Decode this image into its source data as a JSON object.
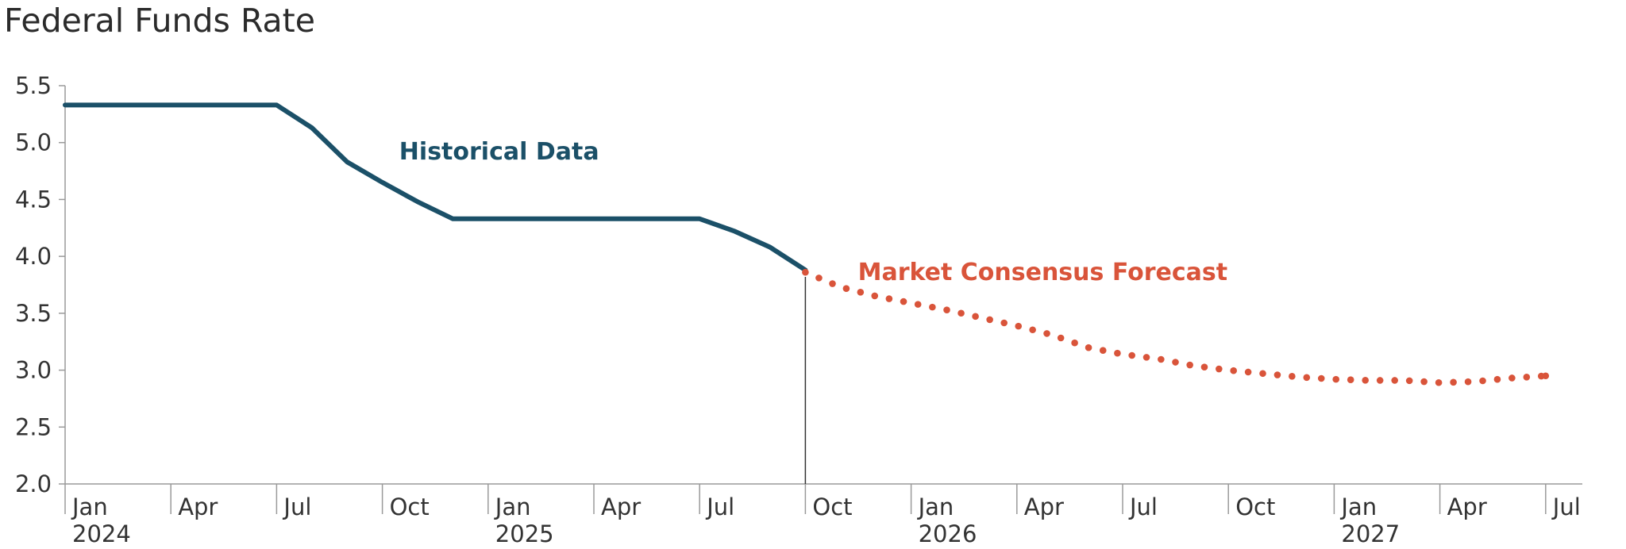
{
  "chart_data": {
    "type": "line",
    "title": "Federal Funds Rate",
    "xlabel": "",
    "ylabel": "",
    "ylim": [
      2.0,
      5.5
    ],
    "yticks": [
      2.0,
      2.5,
      3.0,
      3.5,
      4.0,
      4.5,
      5.0,
      5.5
    ],
    "ytick_labels": [
      "2.0",
      "2.5",
      "3.0",
      "3.5",
      "4.0",
      "4.5",
      "5.0",
      "5.5"
    ],
    "x_axis": {
      "start": "2024-01",
      "end": "2027-07",
      "ticks": [
        {
          "month": "2024-01",
          "label": "Jan",
          "year": "2024"
        },
        {
          "month": "2024-04",
          "label": "Apr",
          "year": ""
        },
        {
          "month": "2024-07",
          "label": "Jul",
          "year": ""
        },
        {
          "month": "2024-10",
          "label": "Oct",
          "year": ""
        },
        {
          "month": "2025-01",
          "label": "Jan",
          "year": "2025"
        },
        {
          "month": "2025-04",
          "label": "Apr",
          "year": ""
        },
        {
          "month": "2025-07",
          "label": "Jul",
          "year": ""
        },
        {
          "month": "2025-10",
          "label": "Oct",
          "year": ""
        },
        {
          "month": "2026-01",
          "label": "Jan",
          "year": "2026"
        },
        {
          "month": "2026-04",
          "label": "Apr",
          "year": ""
        },
        {
          "month": "2026-07",
          "label": "Jul",
          "year": ""
        },
        {
          "month": "2026-10",
          "label": "Oct",
          "year": ""
        },
        {
          "month": "2027-01",
          "label": "Jan",
          "year": "2027"
        },
        {
          "month": "2027-04",
          "label": "Apr",
          "year": ""
        },
        {
          "month": "2027-07",
          "label": "Jul",
          "year": ""
        }
      ]
    },
    "series": [
      {
        "name": "Historical Data",
        "color": "#1b5068",
        "style": "solid",
        "points": [
          {
            "x": "2024-01",
            "y": 5.33
          },
          {
            "x": "2024-02",
            "y": 5.33
          },
          {
            "x": "2024-03",
            "y": 5.33
          },
          {
            "x": "2024-04",
            "y": 5.33
          },
          {
            "x": "2024-05",
            "y": 5.33
          },
          {
            "x": "2024-06",
            "y": 5.33
          },
          {
            "x": "2024-07",
            "y": 5.33
          },
          {
            "x": "2024-08",
            "y": 5.13
          },
          {
            "x": "2024-09",
            "y": 4.83
          },
          {
            "x": "2024-10",
            "y": 4.65
          },
          {
            "x": "2024-11",
            "y": 4.48
          },
          {
            "x": "2024-12",
            "y": 4.33
          },
          {
            "x": "2025-01",
            "y": 4.33
          },
          {
            "x": "2025-02",
            "y": 4.33
          },
          {
            "x": "2025-03",
            "y": 4.33
          },
          {
            "x": "2025-04",
            "y": 4.33
          },
          {
            "x": "2025-05",
            "y": 4.33
          },
          {
            "x": "2025-06",
            "y": 4.33
          },
          {
            "x": "2025-07",
            "y": 4.33
          },
          {
            "x": "2025-08",
            "y": 4.22
          },
          {
            "x": "2025-09",
            "y": 4.08
          },
          {
            "x": "2025-10",
            "y": 3.88
          }
        ]
      },
      {
        "name": "Market Consensus Forecast",
        "color": "#d9543a",
        "style": "dotted",
        "points": [
          {
            "x": "2025-10",
            "y": 3.86
          },
          {
            "x": "2025-11",
            "y": 3.73
          },
          {
            "x": "2025-12",
            "y": 3.65
          },
          {
            "x": "2026-01",
            "y": 3.59
          },
          {
            "x": "2026-02",
            "y": 3.53
          },
          {
            "x": "2026-03",
            "y": 3.46
          },
          {
            "x": "2026-04",
            "y": 3.39
          },
          {
            "x": "2026-05",
            "y": 3.31
          },
          {
            "x": "2026-06",
            "y": 3.2
          },
          {
            "x": "2026-07",
            "y": 3.14
          },
          {
            "x": "2026-08",
            "y": 3.1
          },
          {
            "x": "2026-09",
            "y": 3.04
          },
          {
            "x": "2026-10",
            "y": 3.0
          },
          {
            "x": "2026-11",
            "y": 2.97
          },
          {
            "x": "2026-12",
            "y": 2.94
          },
          {
            "x": "2027-01",
            "y": 2.92
          },
          {
            "x": "2027-02",
            "y": 2.91
          },
          {
            "x": "2027-03",
            "y": 2.91
          },
          {
            "x": "2027-04",
            "y": 2.89
          },
          {
            "x": "2027-05",
            "y": 2.9
          },
          {
            "x": "2027-06",
            "y": 2.93
          },
          {
            "x": "2027-07",
            "y": 2.95
          }
        ]
      }
    ],
    "annotations": [
      {
        "text": "Historical Data",
        "color": "#1b5068",
        "x": "2025-01",
        "y": 4.93
      },
      {
        "text": "Market Consensus Forecast",
        "color": "#d9543a",
        "x": "2026-01",
        "y": 3.87
      }
    ],
    "divider": {
      "x": "2025-10",
      "y_top": 3.82
    },
    "grid": false,
    "legend": "none"
  }
}
